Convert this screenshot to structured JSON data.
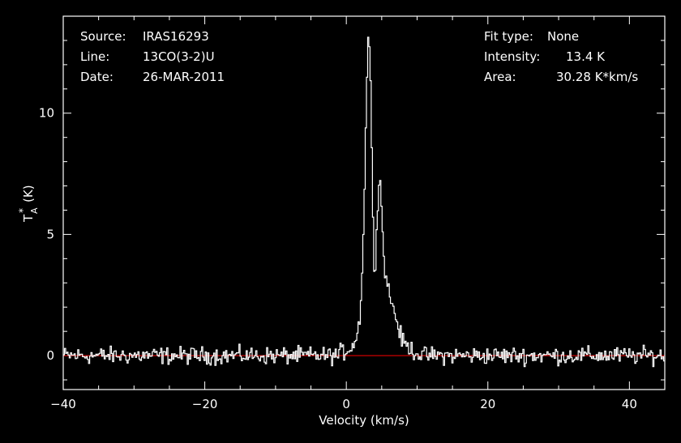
{
  "chart_data": {
    "type": "line",
    "info_left": [
      {
        "key": "Source:",
        "value": "IRAS16293"
      },
      {
        "key": "Line:",
        "value": "13CO(3-2)U"
      },
      {
        "key": "Date:",
        "value": "26-MAR-2011"
      }
    ],
    "info_right": [
      {
        "key": "Fit type:",
        "value": "None"
      },
      {
        "key": "Intensity:",
        "value": "13.4 K"
      },
      {
        "key": "Area:",
        "value": "30.28 K*km/s"
      }
    ],
    "xlabel": "Velocity (km/s)",
    "ylabel_main": "T",
    "ylabel_sup": "*",
    "ylabel_sub": "A",
    "ylabel_unit": "(K)",
    "xlim": [
      -40,
      45
    ],
    "ylim": [
      -1.4,
      14.0
    ],
    "x_ticks": [
      -40,
      -20,
      0,
      20,
      40
    ],
    "x_tick_labels": [
      "−40",
      "−20",
      "0",
      "20",
      "40"
    ],
    "y_ticks": [
      0,
      5,
      10
    ],
    "y_tick_labels": [
      "0",
      "5",
      "10"
    ],
    "x_minor_step": 5,
    "y_minor_step": 1,
    "baseline": {
      "y": 0,
      "color": "#cc0000"
    },
    "series": [
      {
        "color": "#ffffff",
        "noise_sigma": 0.25,
        "points": [
          [
            -1.0,
            0.1
          ],
          [
            0.0,
            0.2
          ],
          [
            1.0,
            0.45
          ],
          [
            1.6,
            0.9
          ],
          [
            2.0,
            1.8
          ],
          [
            2.3,
            4.0
          ],
          [
            2.6,
            7.0
          ],
          [
            2.8,
            10.0
          ],
          [
            3.0,
            12.6
          ],
          [
            3.2,
            13.4
          ],
          [
            3.4,
            12.0
          ],
          [
            3.6,
            8.5
          ],
          [
            3.8,
            5.0
          ],
          [
            4.0,
            3.1
          ],
          [
            4.2,
            4.6
          ],
          [
            4.5,
            6.8
          ],
          [
            4.7,
            7.4
          ],
          [
            5.0,
            6.2
          ],
          [
            5.3,
            4.0
          ],
          [
            5.7,
            3.1
          ],
          [
            6.0,
            2.7
          ],
          [
            6.5,
            2.1
          ],
          [
            7.0,
            1.6
          ],
          [
            7.5,
            1.0
          ],
          [
            8.0,
            0.55
          ],
          [
            9.0,
            0.3
          ],
          [
            10.0,
            0.1
          ],
          [
            11.0,
            0.0
          ]
        ]
      }
    ]
  }
}
